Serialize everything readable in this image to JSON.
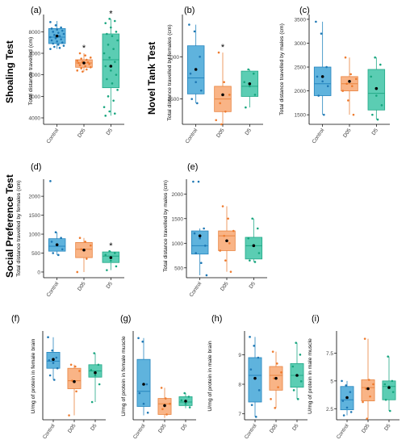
{
  "section_titles": {
    "shoaling": "Shoaling Test",
    "novel_tank": "Novel Tank Test",
    "social": "Social Preference Test"
  },
  "colors": {
    "Control": {
      "fill": "#5FB3DD",
      "line": "#2585BE",
      "dot": "#1F78B4"
    },
    "D05": {
      "fill": "#F9B486",
      "line": "#E9833F",
      "dot": "#EE7B2F"
    },
    "D5": {
      "fill": "#5BCDB3",
      "line": "#22A987",
      "dot": "#17A57E"
    },
    "axis": "#000000",
    "mean": "#000000"
  },
  "chart_data": [
    {
      "id": "a",
      "panel_label": "(a)",
      "type": "boxplot",
      "title": "",
      "xlabel": "",
      "ylabel": "Total distance travelled (cm)",
      "categories": [
        "Control",
        "D05",
        "D5"
      ],
      "yticks": [
        4000,
        5000,
        6000,
        7000,
        8000
      ],
      "ylim": [
        3700,
        8800
      ],
      "boxes": [
        {
          "q1": 7450,
          "median": 7750,
          "q3": 8150,
          "lo": 7200,
          "hi": 8500,
          "mean": 7800,
          "sig": "",
          "points": [
            8450,
            8300,
            8200,
            8150,
            8100,
            8050,
            8000,
            7950,
            7900,
            7850,
            7800,
            7750,
            7700,
            7650,
            7600,
            7550,
            7500,
            7450,
            7400,
            7350,
            7300,
            7250,
            7200
          ]
        },
        {
          "q1": 6350,
          "median": 6550,
          "q3": 6700,
          "lo": 6150,
          "hi": 7000,
          "mean": 6550,
          "sig": "*",
          "points": [
            7000,
            6900,
            6800,
            6750,
            6700,
            6650,
            6600,
            6580,
            6550,
            6520,
            6500,
            6450,
            6400,
            6350,
            6300,
            6250,
            6200,
            6150
          ]
        },
        {
          "q1": 5400,
          "median": 6700,
          "q3": 7900,
          "lo": 4100,
          "hi": 8600,
          "mean": 6400,
          "sig": "*",
          "points": [
            8600,
            8500,
            8400,
            8200,
            8000,
            7900,
            7800,
            7600,
            7400,
            7200,
            7000,
            6800,
            6600,
            6400,
            6200,
            6000,
            5800,
            5600,
            5300,
            5000,
            4800,
            4500,
            4300,
            4200,
            4100
          ]
        }
      ]
    },
    {
      "id": "b",
      "panel_label": "(b)",
      "type": "boxplot",
      "title": "",
      "xlabel": "",
      "ylabel": "Total distance travelled by females (cm)",
      "categories": [
        "Control",
        "D05",
        "D5"
      ],
      "yticks": [
        1500,
        2000
      ],
      "ylim": [
        1200,
        2500
      ],
      "boxes": [
        {
          "q1": 1560,
          "median": 1750,
          "q3": 2130,
          "lo": 1450,
          "hi": 2380,
          "mean": 1850,
          "sig": "",
          "points": [
            2380,
            2300,
            2000,
            1800,
            1700,
            1600,
            1500,
            1450
          ]
        },
        {
          "q1": 1350,
          "median": 1500,
          "q3": 1650,
          "lo": 1200,
          "hi": 2050,
          "mean": 1550,
          "sig": "*",
          "points": [
            2050,
            1700,
            1550,
            1450,
            1350,
            1250,
            1200
          ]
        },
        {
          "q1": 1530,
          "median": 1650,
          "q3": 1830,
          "lo": 1400,
          "hi": 1850,
          "mean": 1680,
          "sig": "",
          "points": [
            1850,
            1800,
            1700,
            1650,
            1550,
            1400
          ]
        }
      ]
    },
    {
      "id": "c",
      "panel_label": "(c)",
      "type": "boxplot",
      "title": "",
      "xlabel": "",
      "ylabel": "Total distance travelled by males (cm)",
      "categories": [
        "Control",
        "D05",
        "D5"
      ],
      "yticks": [
        1500,
        2000,
        2500,
        3000,
        3500
      ],
      "ylim": [
        1300,
        3600
      ],
      "boxes": [
        {
          "q1": 1900,
          "median": 2150,
          "q3": 2500,
          "lo": 1500,
          "hi": 3450,
          "mean": 2300,
          "sig": "",
          "points": [
            3450,
            3200,
            2500,
            2300,
            2200,
            2100,
            1900,
            1500
          ]
        },
        {
          "q1": 2000,
          "median": 2150,
          "q3": 2300,
          "lo": 1500,
          "hi": 2700,
          "mean": 2200,
          "sig": "",
          "points": [
            2700,
            2350,
            2250,
            2150,
            2100,
            2000,
            1800,
            1500
          ]
        },
        {
          "q1": 1600,
          "median": 1950,
          "q3": 2450,
          "lo": 1400,
          "hi": 2700,
          "mean": 2050,
          "sig": "",
          "points": [
            2700,
            2550,
            2300,
            1900,
            1700,
            1500,
            1400
          ]
        }
      ]
    },
    {
      "id": "d",
      "panel_label": "(d)",
      "type": "boxplot",
      "title": "",
      "xlabel": "",
      "ylabel": "Total distance travelled by females (cm)",
      "categories": [
        "Control",
        "D05",
        "D5"
      ],
      "yticks": [
        0,
        500,
        1000,
        1500,
        2000
      ],
      "ylim": [
        -150,
        2450
      ],
      "boxes": [
        {
          "q1": 550,
          "median": 680,
          "q3": 880,
          "lo": 450,
          "hi": 1050,
          "mean": 720,
          "sig": "",
          "points": [
            2400,
            1050,
            900,
            800,
            700,
            600,
            500,
            450
          ]
        },
        {
          "q1": 380,
          "median": 600,
          "q3": 780,
          "lo": 0,
          "hi": 900,
          "mean": 580,
          "sig": "",
          "points": [
            900,
            800,
            700,
            600,
            350,
            0
          ]
        },
        {
          "q1": 250,
          "median": 420,
          "q3": 530,
          "lo": 50,
          "hi": 550,
          "mean": 380,
          "sig": "*",
          "points": [
            550,
            500,
            450,
            300,
            150,
            50
          ]
        }
      ]
    },
    {
      "id": "e",
      "panel_label": "(e)",
      "type": "boxplot",
      "title": "",
      "xlabel": "",
      "ylabel": "Total distance travelled by males (cm)",
      "categories": [
        "Control",
        "D05",
        "D5"
      ],
      "yticks": [
        500,
        1000,
        1500,
        2000
      ],
      "ylim": [
        300,
        2300
      ],
      "boxes": [
        {
          "q1": 780,
          "median": 950,
          "q3": 1250,
          "lo": 350,
          "hi": 1300,
          "mean": 1150,
          "sig": "",
          "points": [
            2250,
            2250,
            1300,
            1200,
            1100,
            950,
            800,
            600,
            350
          ]
        },
        {
          "q1": 850,
          "median": 1150,
          "q3": 1250,
          "lo": 420,
          "hi": 1750,
          "mean": 1050,
          "sig": "",
          "points": [
            1750,
            1500,
            1250,
            1150,
            1000,
            850,
            650,
            420
          ]
        },
        {
          "q1": 680,
          "median": 950,
          "q3": 1120,
          "lo": 620,
          "hi": 1500,
          "mean": 950,
          "sig": "",
          "points": [
            1500,
            1300,
            1100,
            950,
            800,
            650,
            620
          ]
        }
      ]
    },
    {
      "id": "f",
      "panel_label": "(f)",
      "type": "boxplot",
      "title": "",
      "xlabel": "",
      "ylabel": "U/mg of protein in female brain",
      "categories": [
        "Control",
        "D05",
        "D5"
      ],
      "yticks": [],
      "ylim": [
        0,
        10
      ],
      "boxes": [
        {
          "q1": 5.8,
          "median": 6.6,
          "q3": 7.6,
          "lo": 4.5,
          "hi": 9.3,
          "mean": 6.8,
          "sig": "",
          "points": [
            9.3,
            7.8,
            7.0,
            6.7,
            6.4,
            5.8,
            5.0,
            4.5
          ]
        },
        {
          "q1": 3.5,
          "median": 4.4,
          "q3": 5.8,
          "lo": 0.5,
          "hi": 6.2,
          "mean": 4.3,
          "sig": "",
          "points": [
            6.2,
            6.0,
            5.5,
            4.4,
            3.2,
            0.5
          ]
        },
        {
          "q1": 4.8,
          "median": 5.5,
          "q3": 6.2,
          "lo": 2.0,
          "hi": 7.5,
          "mean": 5.3,
          "sig": "",
          "points": [
            7.5,
            6.2,
            5.6,
            5.0,
            4.0,
            2.0
          ]
        }
      ]
    },
    {
      "id": "g",
      "panel_label": "(g)",
      "type": "boxplot",
      "title": "",
      "xlabel": "",
      "ylabel": "U/mg of protein in female muscle",
      "categories": [
        "Control",
        "D05",
        "D5"
      ],
      "yticks": [],
      "ylim": [
        0,
        10
      ],
      "boxes": [
        {
          "q1": 1.5,
          "median": 3.2,
          "q3": 6.8,
          "lo": 0.5,
          "hi": 9.2,
          "mean": 4.0,
          "sig": "",
          "points": [
            9.2,
            8.8,
            4.0,
            3.0,
            1.8,
            0.8
          ]
        },
        {
          "q1": 0.6,
          "median": 1.8,
          "q3": 2.4,
          "lo": 0.2,
          "hi": 3.6,
          "mean": 1.6,
          "sig": "",
          "points": [
            3.6,
            2.4,
            1.8,
            1.2,
            0.6
          ]
        },
        {
          "q1": 1.6,
          "median": 2.0,
          "q3": 2.6,
          "lo": 1.3,
          "hi": 3.0,
          "mean": 2.1,
          "sig": "",
          "points": [
            3.0,
            2.6,
            2.2,
            1.8,
            1.4
          ]
        }
      ]
    },
    {
      "id": "h",
      "panel_label": "(h)",
      "type": "boxplot",
      "title": "",
      "xlabel": "",
      "ylabel": "U/mg of protein in male brain",
      "categories": [
        "Control",
        "D05",
        "D5"
      ],
      "yticks": [
        7,
        8,
        9
      ],
      "ylim": [
        6.8,
        9.8
      ],
      "boxes": [
        {
          "q1": 7.4,
          "median": 8.3,
          "q3": 8.9,
          "lo": 6.9,
          "hi": 9.6,
          "mean": 8.2,
          "sig": "",
          "points": [
            9.6,
            9.3,
            8.9,
            8.5,
            8.2,
            7.8,
            7.3,
            6.9
          ]
        },
        {
          "q1": 7.8,
          "median": 8.3,
          "q3": 8.6,
          "lo": 7.2,
          "hi": 9.1,
          "mean": 8.2,
          "sig": "",
          "points": [
            9.1,
            8.7,
            8.4,
            8.2,
            7.9,
            7.5,
            7.2
          ]
        },
        {
          "q1": 7.9,
          "median": 8.3,
          "q3": 8.7,
          "lo": 7.5,
          "hi": 9.4,
          "mean": 8.3,
          "sig": "",
          "points": [
            9.4,
            9.0,
            8.6,
            8.3,
            8.1,
            7.8,
            7.5
          ]
        }
      ]
    },
    {
      "id": "i",
      "panel_label": "(i)",
      "type": "boxplot",
      "title": "",
      "xlabel": "",
      "ylabel": "U/mg of protein in male muscle",
      "categories": [
        "Control",
        "D05",
        "D5"
      ],
      "yticks": [
        2.5,
        5.0,
        7.5
      ],
      "ylim": [
        1.5,
        9.5
      ],
      "boxes": [
        {
          "q1": 2.4,
          "median": 3.3,
          "q3": 4.5,
          "lo": 1.9,
          "hi": 5.0,
          "mean": 3.5,
          "sig": "",
          "points": [
            5.0,
            4.6,
            4.0,
            3.2,
            2.6,
            2.2,
            1.9
          ]
        },
        {
          "q1": 3.2,
          "median": 4.4,
          "q3": 5.1,
          "lo": 1.6,
          "hi": 8.8,
          "mean": 4.3,
          "sig": "",
          "points": [
            8.8,
            5.1,
            4.7,
            4.3,
            3.6,
            3.1,
            1.6
          ]
        },
        {
          "q1": 3.3,
          "median": 4.5,
          "q3": 5.0,
          "lo": 2.3,
          "hi": 7.2,
          "mean": 4.4,
          "sig": "",
          "points": [
            7.2,
            5.0,
            4.7,
            4.5,
            4.0,
            3.3,
            2.3
          ]
        }
      ]
    }
  ]
}
